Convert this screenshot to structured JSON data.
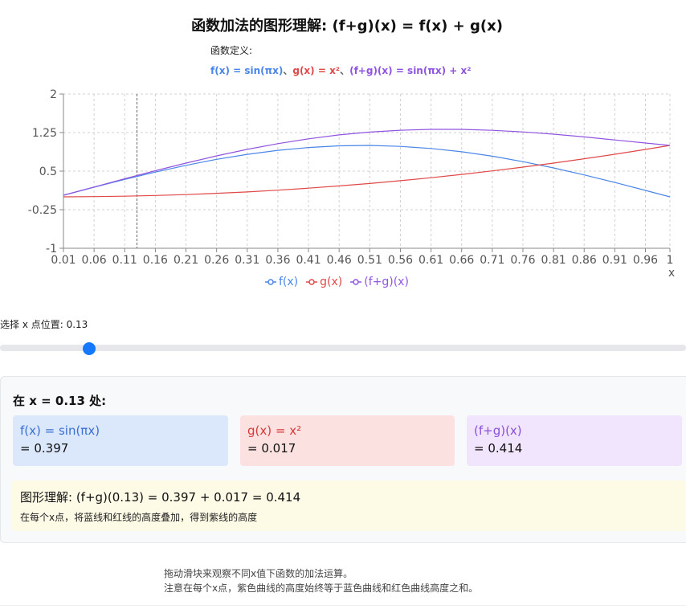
{
  "title": "函数加法的图形理解: (f+g)(x) = f(x) + g(x)",
  "definitions": {
    "heading": "函数定义:",
    "f": "f(x) = sin(πx)",
    "sep1": "、",
    "g": "g(x) = x²",
    "sep2": "、",
    "sum": "(f+g)(x) = sin(πx) + x²"
  },
  "colors": {
    "f": "#4a86e8",
    "g": "#e04848",
    "sum": "#9055e0",
    "accent": "#1677ff"
  },
  "chart_data": {
    "type": "line",
    "xlabel": "x",
    "xlim": [
      0.01,
      1
    ],
    "ylim": [
      -1,
      2
    ],
    "x_ticks": [
      "0.01",
      "0.06",
      "0.11",
      "0.16",
      "0.21",
      "0.26",
      "0.31",
      "0.36",
      "0.41",
      "0.46",
      "0.51",
      "0.56",
      "0.61",
      "0.66",
      "0.71",
      "0.76",
      "0.81",
      "0.86",
      "0.91",
      "0.96",
      "1"
    ],
    "y_ticks": [
      "2",
      "1.25",
      "0.5",
      "-0.25",
      "-1"
    ],
    "grid": true,
    "legend_position": "bottom",
    "marker_x": 0.13,
    "x": [
      0.01,
      0.06,
      0.11,
      0.16,
      0.21,
      0.26,
      0.31,
      0.36,
      0.41,
      0.46,
      0.51,
      0.56,
      0.61,
      0.66,
      0.71,
      0.76,
      0.81,
      0.86,
      0.91,
      0.96,
      1
    ],
    "series": [
      {
        "name": "f(x)",
        "color": "#4a86e8",
        "values": [
          0.031,
          0.187,
          0.339,
          0.482,
          0.613,
          0.729,
          0.827,
          0.905,
          0.96,
          0.992,
          1.0,
          0.982,
          0.941,
          0.876,
          0.79,
          0.685,
          0.562,
          0.426,
          0.279,
          0.125,
          0.0
        ]
      },
      {
        "name": "g(x)",
        "color": "#e04848",
        "values": [
          0.0,
          0.004,
          0.012,
          0.026,
          0.044,
          0.068,
          0.096,
          0.13,
          0.168,
          0.212,
          0.26,
          0.314,
          0.372,
          0.436,
          0.504,
          0.578,
          0.656,
          0.74,
          0.828,
          0.922,
          1.0
        ]
      },
      {
        "name": "(f+g)(x)",
        "color": "#9055e0",
        "values": [
          0.032,
          0.191,
          0.351,
          0.508,
          0.657,
          0.797,
          0.923,
          1.035,
          1.128,
          1.204,
          1.26,
          1.296,
          1.313,
          1.312,
          1.294,
          1.263,
          1.218,
          1.166,
          1.107,
          1.047,
          1.0
        ]
      }
    ]
  },
  "slider": {
    "label": "选择 x 点位置: 0.13",
    "value": 0.13,
    "min": 0.01,
    "max": 1
  },
  "results": {
    "heading": "在 x = 0.13 处:",
    "f_name": "f(x) = sin(πx)",
    "f_value": "= 0.397",
    "g_name": "g(x) = x²",
    "g_value": "= 0.017",
    "sum_name": "(f+g)(x)",
    "sum_value": "= 0.414",
    "equation": "图形理解: (f+g)(0.13) = 0.397 + 0.017 = 0.414",
    "note": "在每个x点，将蓝线和红线的高度叠加，得到紫线的高度"
  },
  "footer": {
    "line1": "拖动滑块来观察不同x值下函数的加法运算。",
    "line2": "注意在每个x点，紫色曲线的高度始终等于蓝色曲线和红色曲线高度之和。"
  }
}
